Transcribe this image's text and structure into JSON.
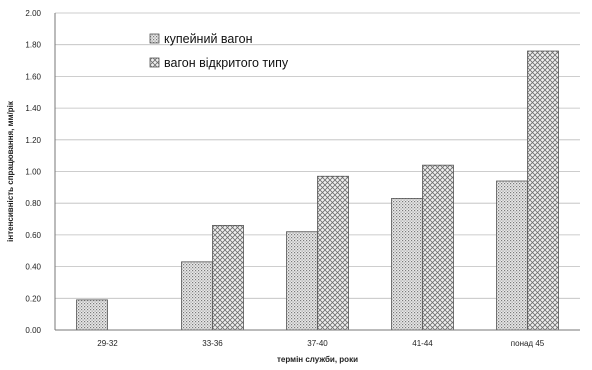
{
  "chart_data": {
    "type": "bar",
    "title": "",
    "xlabel": "термін служби, роки",
    "ylabel": "інтенсивність спрацювання, мм/рік",
    "categories": [
      "29-32",
      "33-36",
      "37-40",
      "41-44",
      "понад 45"
    ],
    "ylim": [
      0,
      2.0
    ],
    "yticks": [
      "0.00",
      "0.20",
      "0.40",
      "0.60",
      "0.80",
      "1.00",
      "1.20",
      "1.40",
      "1.60",
      "1.80",
      "2.00"
    ],
    "grid": true,
    "legend_position": "top-left",
    "series": [
      {
        "name": "купейний вагон",
        "values": [
          0.19,
          0.43,
          0.62,
          0.83,
          0.94
        ],
        "pattern": "dots",
        "color": "#b8b8b8"
      },
      {
        "name": "вагон відкритого типу",
        "values": [
          null,
          0.66,
          0.97,
          1.04,
          1.76
        ],
        "pattern": "crosshatch",
        "color": "#9a9a9a"
      }
    ]
  }
}
